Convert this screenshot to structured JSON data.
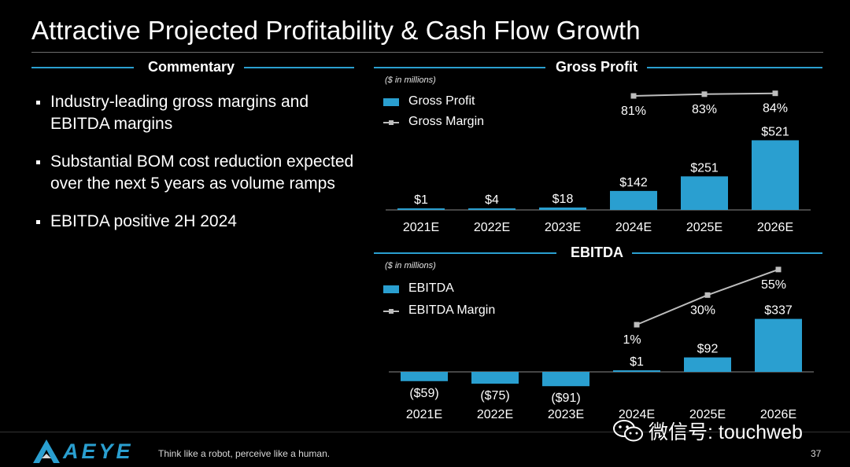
{
  "slide": {
    "title": "Attractive Projected Profitability & Cash Flow Growth",
    "page_number": "37"
  },
  "commentary": {
    "heading": "Commentary",
    "bullets": [
      "Industry-leading gross margins and EBITDA margins",
      "Substantial BOM cost reduction expected over the next 5 years as volume ramps",
      "EBITDA positive 2H 2024"
    ]
  },
  "footer": {
    "logo_text": "AEYE",
    "tagline": "Think like a robot, perceive like a human."
  },
  "watermark": {
    "text": "微信号: touchweb",
    "icon": "wechat-icon"
  },
  "colors": {
    "accent": "#2a9fd0",
    "margin_line": "#bdbdbd"
  },
  "chart_data": [
    {
      "type": "bar",
      "title": "Gross Profit",
      "units_note": "($ in millions)",
      "categories": [
        "2021E",
        "2022E",
        "2023E",
        "2024E",
        "2025E",
        "2026E"
      ],
      "series": [
        {
          "name": "Gross Profit",
          "kind": "bar",
          "values": [
            1,
            4,
            18,
            142,
            251,
            521
          ],
          "labels": [
            "$1",
            "$4",
            "$18",
            "$142",
            "$251",
            "$521"
          ]
        },
        {
          "name": "Gross Margin",
          "kind": "line",
          "values": [
            null,
            null,
            null,
            81,
            83,
            84
          ],
          "labels": [
            "",
            "",
            "",
            "81%",
            "83%",
            "84%"
          ]
        }
      ],
      "ylim": [
        0,
        560
      ]
    },
    {
      "type": "bar",
      "title": "EBITDA",
      "units_note": "($ in millions)",
      "categories": [
        "2021E",
        "2022E",
        "2023E",
        "2024E",
        "2025E",
        "2026E"
      ],
      "series": [
        {
          "name": "EBITDA",
          "kind": "bar",
          "values": [
            -59,
            -75,
            -91,
            1,
            92,
            337
          ],
          "labels": [
            "($59)",
            "($75)",
            "($91)",
            "$1",
            "$92",
            "$337"
          ]
        },
        {
          "name": "EBITDA Margin",
          "kind": "line",
          "values": [
            null,
            null,
            null,
            1,
            30,
            55
          ],
          "labels": [
            "",
            "",
            "",
            "1%",
            "30%",
            "55%"
          ]
        }
      ],
      "ylim": [
        -100,
        340
      ]
    }
  ]
}
